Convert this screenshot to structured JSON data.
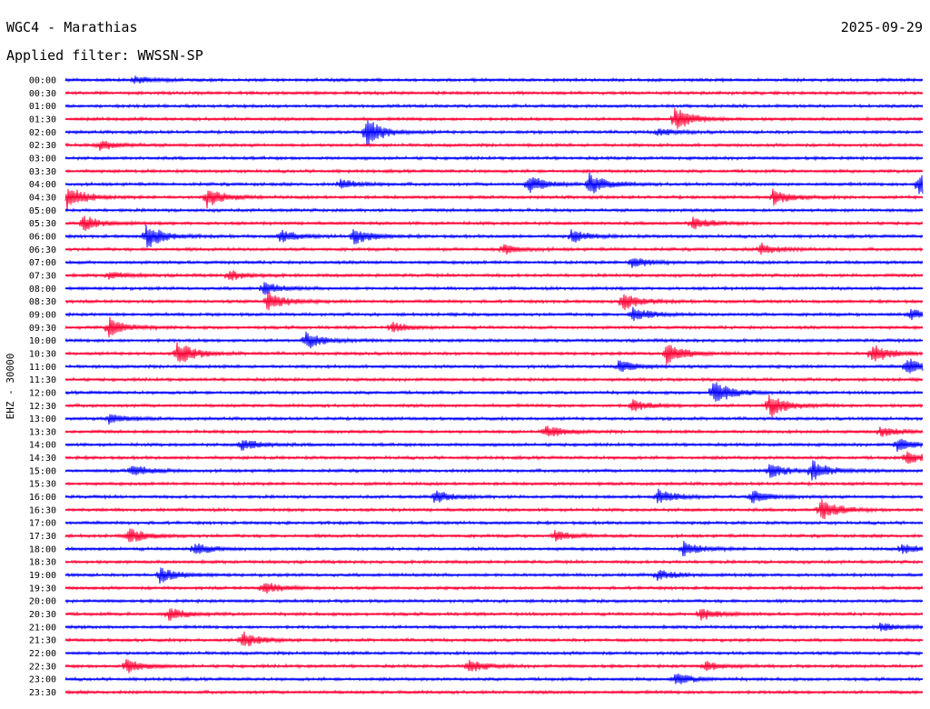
{
  "header": {
    "station": "WGC4 - Marathias",
    "date": "2025-09-29",
    "filter": "Applied filter: WWSSN-SP"
  },
  "chart_data": {
    "type": "line",
    "title": "WGC4 - Marathias",
    "channel_label": "EHZ - 30000",
    "colors": [
      "#0000ff",
      "#ff0033"
    ],
    "rows": [
      {
        "label": "00:00"
      },
      {
        "label": "00:30"
      },
      {
        "label": "01:00"
      },
      {
        "label": "01:30"
      },
      {
        "label": "02:00"
      },
      {
        "label": "02:30"
      },
      {
        "label": "03:00"
      },
      {
        "label": "03:30"
      },
      {
        "label": "04:00"
      },
      {
        "label": "04:30"
      },
      {
        "label": "05:00"
      },
      {
        "label": "05:30"
      },
      {
        "label": "06:00"
      },
      {
        "label": "06:30"
      },
      {
        "label": "07:00"
      },
      {
        "label": "07:30"
      },
      {
        "label": "08:00"
      },
      {
        "label": "08:30"
      },
      {
        "label": "09:00"
      },
      {
        "label": "09:30"
      },
      {
        "label": "10:00"
      },
      {
        "label": "10:30"
      },
      {
        "label": "11:00"
      },
      {
        "label": "11:30"
      },
      {
        "label": "12:00"
      },
      {
        "label": "12:30"
      },
      {
        "label": "13:00"
      },
      {
        "label": "13:30"
      },
      {
        "label": "14:00"
      },
      {
        "label": "14:30"
      },
      {
        "label": "15:00"
      },
      {
        "label": "15:30"
      },
      {
        "label": "16:00"
      },
      {
        "label": "16:30"
      },
      {
        "label": "17:00"
      },
      {
        "label": "17:30"
      },
      {
        "label": "18:00"
      },
      {
        "label": "18:30"
      },
      {
        "label": "19:00"
      },
      {
        "label": "19:30"
      },
      {
        "label": "20:00"
      },
      {
        "label": "20:30"
      },
      {
        "label": "21:00"
      },
      {
        "label": "21:30"
      },
      {
        "label": "22:00"
      },
      {
        "label": "22:30"
      },
      {
        "label": "23:00"
      },
      {
        "label": "23:30"
      }
    ],
    "events": [
      {
        "row": 0,
        "t": 0.08,
        "amp": 0.3
      },
      {
        "row": 3,
        "t": 0.71,
        "amp": 1.0
      },
      {
        "row": 4,
        "t": 0.35,
        "amp": 1.1
      },
      {
        "row": 4,
        "t": 0.69,
        "amp": 0.3
      },
      {
        "row": 5,
        "t": 0.04,
        "amp": 0.4
      },
      {
        "row": 8,
        "t": 0.32,
        "amp": 0.4
      },
      {
        "row": 8,
        "t": 0.54,
        "amp": 0.7
      },
      {
        "row": 8,
        "t": 0.61,
        "amp": 0.9
      },
      {
        "row": 8,
        "t": 0.995,
        "amp": 1.0
      },
      {
        "row": 9,
        "t": 0.002,
        "amp": 1.0
      },
      {
        "row": 9,
        "t": 0.165,
        "amp": 0.8
      },
      {
        "row": 9,
        "t": 0.825,
        "amp": 0.6
      },
      {
        "row": 11,
        "t": 0.02,
        "amp": 0.6
      },
      {
        "row": 11,
        "t": 0.73,
        "amp": 0.5
      },
      {
        "row": 12,
        "t": 0.094,
        "amp": 1.0
      },
      {
        "row": 12,
        "t": 0.25,
        "amp": 0.5
      },
      {
        "row": 12,
        "t": 0.335,
        "amp": 0.7
      },
      {
        "row": 12,
        "t": 0.59,
        "amp": 0.5
      },
      {
        "row": 13,
        "t": 0.51,
        "amp": 0.4
      },
      {
        "row": 13,
        "t": 0.81,
        "amp": 0.5
      },
      {
        "row": 14,
        "t": 0.66,
        "amp": 0.5
      },
      {
        "row": 15,
        "t": 0.05,
        "amp": 0.3
      },
      {
        "row": 15,
        "t": 0.19,
        "amp": 0.4
      },
      {
        "row": 16,
        "t": 0.23,
        "amp": 0.5
      },
      {
        "row": 17,
        "t": 0.235,
        "amp": 0.8
      },
      {
        "row": 17,
        "t": 0.65,
        "amp": 0.7
      },
      {
        "row": 18,
        "t": 0.66,
        "amp": 0.6
      },
      {
        "row": 18,
        "t": 0.985,
        "amp": 0.4
      },
      {
        "row": 19,
        "t": 0.05,
        "amp": 0.8
      },
      {
        "row": 19,
        "t": 0.38,
        "amp": 0.4
      },
      {
        "row": 20,
        "t": 0.28,
        "amp": 0.7
      },
      {
        "row": 21,
        "t": 0.13,
        "amp": 1.0
      },
      {
        "row": 21,
        "t": 0.7,
        "amp": 0.9
      },
      {
        "row": 21,
        "t": 0.94,
        "amp": 0.8
      },
      {
        "row": 22,
        "t": 0.645,
        "amp": 0.5
      },
      {
        "row": 22,
        "t": 0.98,
        "amp": 0.7
      },
      {
        "row": 24,
        "t": 0.755,
        "amp": 1.0
      },
      {
        "row": 25,
        "t": 0.82,
        "amp": 1.0
      },
      {
        "row": 25,
        "t": 0.66,
        "amp": 0.5
      },
      {
        "row": 26,
        "t": 0.05,
        "amp": 0.4
      },
      {
        "row": 27,
        "t": 0.56,
        "amp": 0.5
      },
      {
        "row": 27,
        "t": 0.95,
        "amp": 0.4
      },
      {
        "row": 28,
        "t": 0.205,
        "amp": 0.5
      },
      {
        "row": 28,
        "t": 0.97,
        "amp": 0.5
      },
      {
        "row": 29,
        "t": 0.98,
        "amp": 0.5
      },
      {
        "row": 30,
        "t": 0.077,
        "amp": 0.5
      },
      {
        "row": 30,
        "t": 0.87,
        "amp": 0.8
      },
      {
        "row": 30,
        "t": 0.82,
        "amp": 0.6
      },
      {
        "row": 32,
        "t": 0.43,
        "amp": 0.5
      },
      {
        "row": 32,
        "t": 0.69,
        "amp": 0.6
      },
      {
        "row": 32,
        "t": 0.8,
        "amp": 0.5
      },
      {
        "row": 33,
        "t": 0.88,
        "amp": 0.9
      },
      {
        "row": 35,
        "t": 0.073,
        "amp": 0.6
      },
      {
        "row": 35,
        "t": 0.57,
        "amp": 0.4
      },
      {
        "row": 36,
        "t": 0.15,
        "amp": 0.5
      },
      {
        "row": 36,
        "t": 0.72,
        "amp": 0.6
      },
      {
        "row": 36,
        "t": 0.975,
        "amp": 0.4
      },
      {
        "row": 38,
        "t": 0.11,
        "amp": 0.6
      },
      {
        "row": 38,
        "t": 0.69,
        "amp": 0.4
      },
      {
        "row": 39,
        "t": 0.23,
        "amp": 0.5
      },
      {
        "row": 41,
        "t": 0.12,
        "amp": 0.5
      },
      {
        "row": 41,
        "t": 0.74,
        "amp": 0.5
      },
      {
        "row": 42,
        "t": 0.95,
        "amp": 0.3
      },
      {
        "row": 43,
        "t": 0.205,
        "amp": 0.7
      },
      {
        "row": 45,
        "t": 0.07,
        "amp": 0.6
      },
      {
        "row": 45,
        "t": 0.47,
        "amp": 0.5
      },
      {
        "row": 45,
        "t": 0.745,
        "amp": 0.4
      },
      {
        "row": 46,
        "t": 0.71,
        "amp": 0.5
      }
    ]
  }
}
